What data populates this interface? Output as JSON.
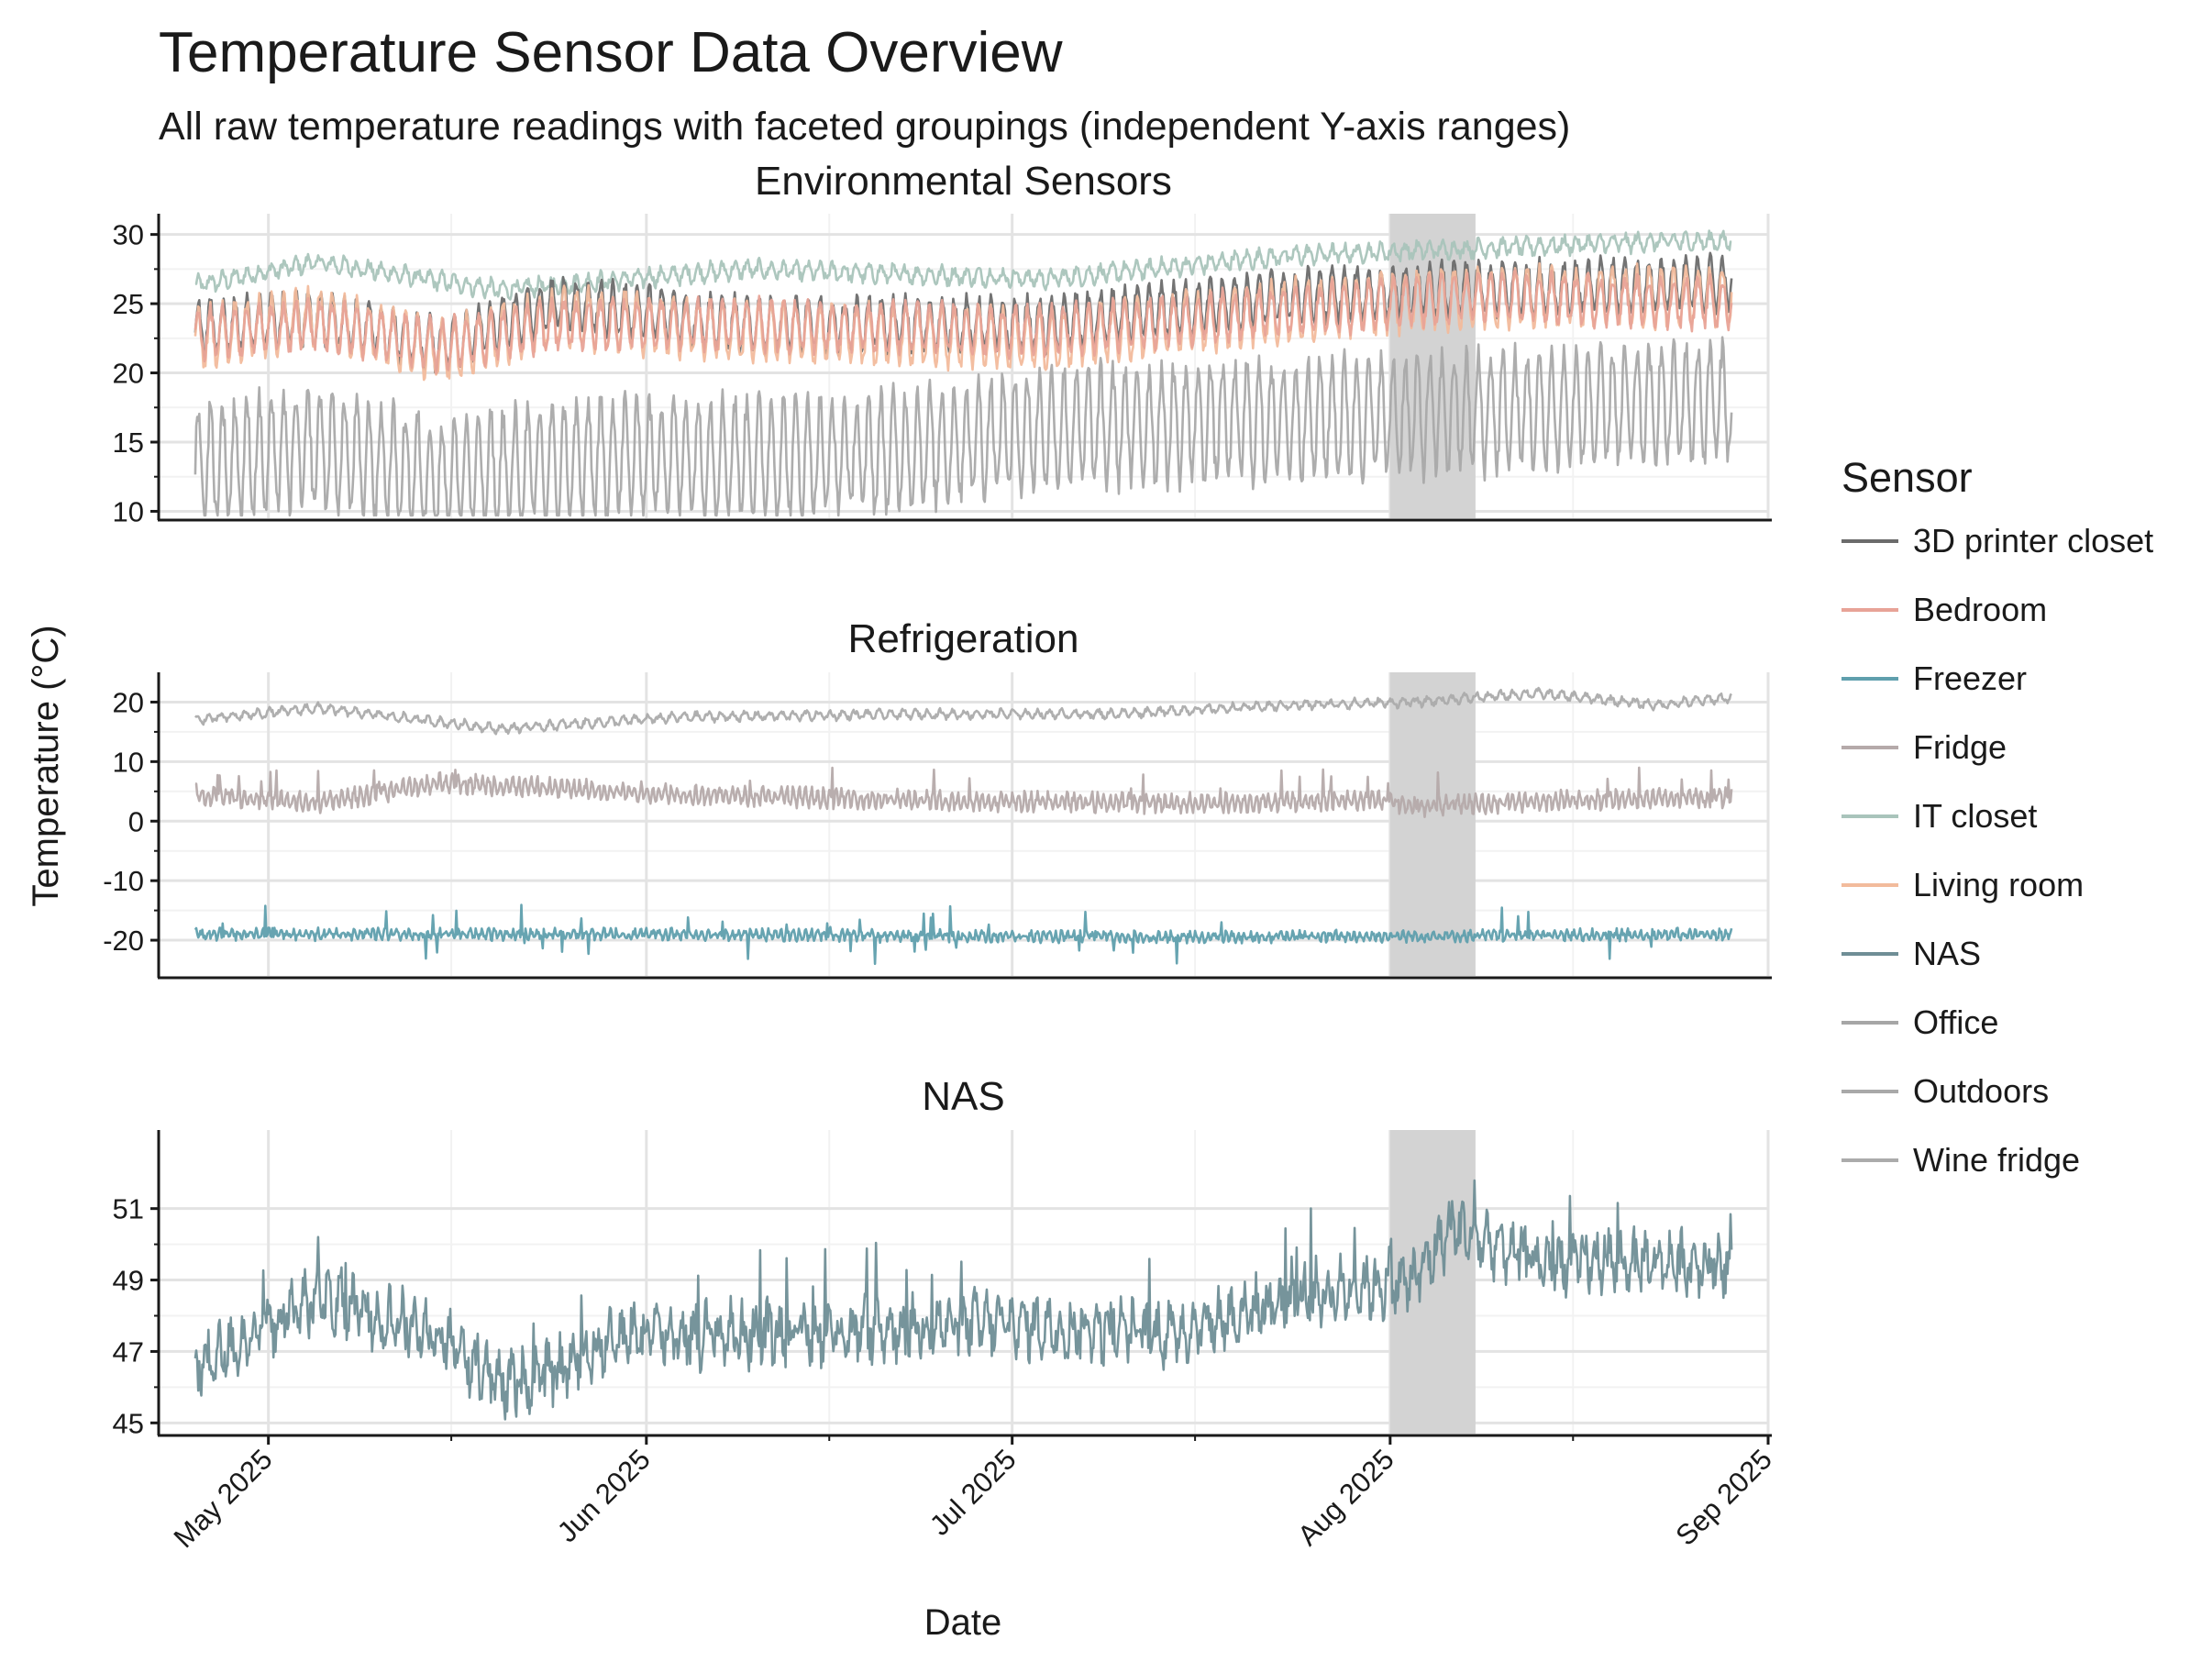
{
  "chart_data": {
    "type": "line",
    "title": "Temperature Sensor Data Overview",
    "subtitle": "All raw temperature readings with faceted groupings (independent Y-axis ranges)",
    "xlabel": "Date",
    "ylabel": "Temperature (°C)",
    "x_range": [
      "2025-04-22",
      "2025-09-01"
    ],
    "x_ticks": [
      {
        "date": "2025-05-01",
        "label": "May 2025"
      },
      {
        "date": "2025-06-01",
        "label": "Jun 2025"
      },
      {
        "date": "2025-07-01",
        "label": "Jul 2025"
      },
      {
        "date": "2025-08-01",
        "label": "Aug 2025"
      },
      {
        "date": "2025-09-01",
        "label": "Sep 2025"
      }
    ],
    "x_minor_ticks": [
      "2025-05-16",
      "2025-06-16",
      "2025-07-16",
      "2025-08-16"
    ],
    "highlight_span": {
      "start": "2025-08-01",
      "end": "2025-08-08",
      "color": "#d3d3d3"
    },
    "data_range": {
      "start": "2025-04-25",
      "end": "2025-08-29"
    },
    "legend": {
      "title": "Sensor",
      "position": "right",
      "items": [
        {
          "name": "3D printer closet",
          "color": "#6b6b6b"
        },
        {
          "name": "Bedroom",
          "color": "#e8a397"
        },
        {
          "name": "Freezer",
          "color": "#5f9fad"
        },
        {
          "name": "Fridge",
          "color": "#b5aaaa"
        },
        {
          "name": "IT closet",
          "color": "#a9c4bb"
        },
        {
          "name": "Living room",
          "color": "#f2bb9c"
        },
        {
          "name": "NAS",
          "color": "#6f8e96"
        },
        {
          "name": "Office",
          "color": "#a6a6a6"
        },
        {
          "name": "Outdoors",
          "color": "#a9a9a9"
        },
        {
          "name": "Wine fridge",
          "color": "#ababab"
        }
      ]
    },
    "facets": [
      {
        "title": "Environmental Sensors",
        "ylim": [
          9.5,
          31.5
        ],
        "y_ticks": [
          10,
          15,
          20,
          25,
          30
        ],
        "series": [
          {
            "name": "IT closet",
            "color": "#a9c4bb",
            "base": 27.2,
            "trend": 1.3,
            "daily_amp": 0.5,
            "noise": 0.35,
            "period": 1,
            "levels": [
              [
                0,
                26.3
              ],
              [
                10,
                28.0
              ],
              [
                25,
                26.0
              ],
              [
                45,
                27.5
              ],
              [
                70,
                26.8
              ],
              [
                90,
                28.5
              ],
              [
                105,
                29.0
              ],
              [
                120,
                29.5
              ],
              [
                127,
                29.5
              ]
            ]
          },
          {
            "name": "3D printer closet",
            "color": "#6b6b6b",
            "base": 23.5,
            "daily_amp": 1.8,
            "noise": 0.5,
            "period": 1,
            "levels": [
              [
                0,
                23.3
              ],
              [
                10,
                24.0
              ],
              [
                20,
                22.0
              ],
              [
                30,
                25.0
              ],
              [
                45,
                23.5
              ],
              [
                70,
                23.5
              ],
              [
                90,
                25.5
              ],
              [
                105,
                26.0
              ],
              [
                127,
                26.5
              ]
            ]
          },
          {
            "name": "Living room",
            "color": "#f2bb9c",
            "base": 23.0,
            "daily_amp": 2.0,
            "noise": 0.5,
            "period": 1,
            "levels": [
              [
                0,
                22.5
              ],
              [
                10,
                24.0
              ],
              [
                20,
                21.5
              ],
              [
                30,
                24.0
              ],
              [
                45,
                23.0
              ],
              [
                70,
                22.5
              ],
              [
                90,
                24.5
              ],
              [
                105,
                25.5
              ],
              [
                127,
                25.5
              ]
            ]
          },
          {
            "name": "Bedroom",
            "color": "#e8a397",
            "base": 23.0,
            "daily_amp": 1.6,
            "noise": 0.5,
            "period": 1,
            "levels": [
              [
                0,
                22.8
              ],
              [
                10,
                23.5
              ],
              [
                20,
                22.0
              ],
              [
                30,
                23.5
              ],
              [
                45,
                23.5
              ],
              [
                70,
                23.0
              ],
              [
                90,
                24.5
              ],
              [
                105,
                25.5
              ],
              [
                127,
                25.0
              ]
            ]
          },
          {
            "name": "Outdoors",
            "color": "#a9a9a9",
            "base": 14.0,
            "daily_amp": 4.0,
            "noise": 1.0,
            "period": 1,
            "levels": [
              [
                0,
                13.5
              ],
              [
                10,
                14.5
              ],
              [
                20,
                12.5
              ],
              [
                35,
                14.0
              ],
              [
                55,
                14.0
              ],
              [
                70,
                16.0
              ],
              [
                85,
                16.5
              ],
              [
                100,
                17.0
              ],
              [
                115,
                17.5
              ],
              [
                127,
                18.0
              ]
            ]
          }
        ]
      },
      {
        "title": "Refrigeration",
        "ylim": [
          -26,
          25
        ],
        "y_ticks": [
          20,
          10,
          0,
          -10,
          -20
        ],
        "series": [
          {
            "name": "Wine fridge",
            "color": "#ababab",
            "daily_amp": 0.6,
            "noise": 0.4,
            "period": 1,
            "levels": [
              [
                0,
                17.0
              ],
              [
                10,
                19.0
              ],
              [
                25,
                15.5
              ],
              [
                40,
                17.5
              ],
              [
                60,
                18.0
              ],
              [
                75,
                18.0
              ],
              [
                90,
                19.5
              ],
              [
                100,
                20.0
              ],
              [
                110,
                21.5
              ],
              [
                120,
                19.5
              ],
              [
                127,
                21.0
              ]
            ]
          },
          {
            "name": "Fridge",
            "color": "#b5aaaa",
            "daily_amp": 1.2,
            "noise": 0.8,
            "period": 0.5,
            "spikes": 9,
            "levels": [
              [
                0,
                4.5
              ],
              [
                10,
                3.0
              ],
              [
                20,
                6.5
              ],
              [
                40,
                4.5
              ],
              [
                60,
                3.5
              ],
              [
                80,
                3.0
              ],
              [
                97,
                3.5
              ],
              [
                100,
                2.5
              ],
              [
                112,
                3.5
              ],
              [
                127,
                4.0
              ]
            ]
          },
          {
            "name": "Freezer",
            "color": "#5f9fad",
            "daily_amp": 0.6,
            "noise": 0.6,
            "period": 0.5,
            "spikes": -14,
            "levels": [
              [
                0,
                -19.0
              ],
              [
                40,
                -19.0
              ],
              [
                80,
                -19.5
              ],
              [
                127,
                -19.0
              ]
            ]
          }
        ]
      },
      {
        "title": "NAS",
        "ylim": [
          44.7,
          53.2
        ],
        "y_ticks": [
          51,
          49,
          47,
          45
        ],
        "series": [
          {
            "name": "NAS",
            "color": "#6f8e96",
            "daily_amp": 0.5,
            "noise": 0.6,
            "period": 1,
            "spikes": 51.5,
            "levels": [
              [
                0,
                46.5
              ],
              [
                5,
                47.5
              ],
              [
                10,
                48.5
              ],
              [
                20,
                47.5
              ],
              [
                25,
                46.0
              ],
              [
                30,
                46.5
              ],
              [
                35,
                47.5
              ],
              [
                50,
                47.5
              ],
              [
                65,
                47.8
              ],
              [
                80,
                47.5
              ],
              [
                90,
                48.5
              ],
              [
                100,
                49.0
              ],
              [
                103,
                50.5
              ],
              [
                110,
                49.5
              ],
              [
                118,
                49.5
              ],
              [
                127,
                49.5
              ]
            ]
          }
        ]
      }
    ]
  }
}
